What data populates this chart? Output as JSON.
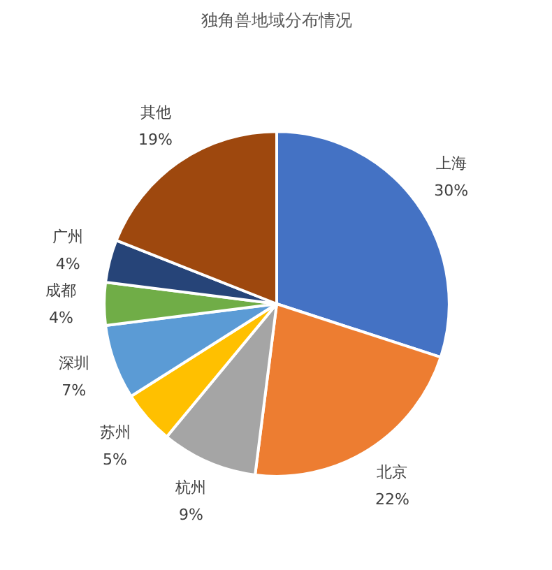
{
  "chart_data": {
    "type": "pie",
    "title": "独角兽地域分布情况",
    "categories": [
      "上海",
      "北京",
      "杭州",
      "苏州",
      "深圳",
      "成都",
      "广州",
      "其他"
    ],
    "values": [
      30,
      22,
      9,
      5,
      7,
      4,
      4,
      19
    ],
    "value_labels": [
      "30%",
      "22%",
      "9%",
      "5%",
      "7%",
      "4%",
      "4%",
      "19%"
    ],
    "colors": [
      "#4472c4",
      "#ed7d31",
      "#a5a5a5",
      "#ffc000",
      "#5b9bd5",
      "#70ad47",
      "#264478",
      "#9e480e"
    ]
  }
}
